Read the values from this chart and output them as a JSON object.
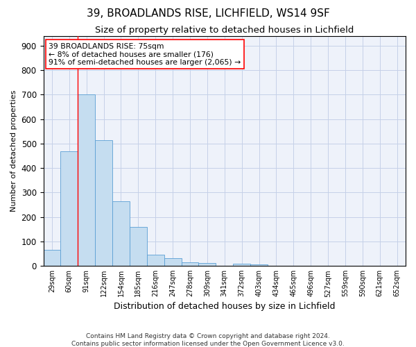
{
  "title1": "39, BROADLANDS RISE, LICHFIELD, WS14 9SF",
  "title2": "Size of property relative to detached houses in Lichfield",
  "xlabel": "Distribution of detached houses by size in Lichfield",
  "ylabel": "Number of detached properties",
  "categories": [
    "29sqm",
    "60sqm",
    "91sqm",
    "122sqm",
    "154sqm",
    "185sqm",
    "216sqm",
    "247sqm",
    "278sqm",
    "309sqm",
    "341sqm",
    "372sqm",
    "403sqm",
    "434sqm",
    "465sqm",
    "496sqm",
    "527sqm",
    "559sqm",
    "590sqm",
    "621sqm",
    "652sqm"
  ],
  "values": [
    65,
    468,
    700,
    513,
    265,
    160,
    47,
    33,
    15,
    12,
    0,
    10,
    5,
    0,
    0,
    0,
    0,
    0,
    0,
    0,
    0
  ],
  "bar_color": "#c5ddf0",
  "bar_edge_color": "#5a9fd4",
  "annotation_line0": "39 BROADLANDS RISE: 75sqm",
  "annotation_line1": "← 8% of detached houses are smaller (176)",
  "annotation_line2": "91% of semi-detached houses are larger (2,065) →",
  "ylim": [
    0,
    940
  ],
  "yticks": [
    0,
    100,
    200,
    300,
    400,
    500,
    600,
    700,
    800,
    900
  ],
  "footnote1": "Contains HM Land Registry data © Crown copyright and database right 2024.",
  "footnote2": "Contains public sector information licensed under the Open Government Licence v3.0.",
  "bg_color": "#eef2fa",
  "grid_color": "#c5d0e8",
  "title1_fontsize": 11,
  "title2_fontsize": 9.5,
  "xlabel_fontsize": 9,
  "ylabel_fontsize": 8,
  "ytick_fontsize": 8.5,
  "xtick_fontsize": 7
}
